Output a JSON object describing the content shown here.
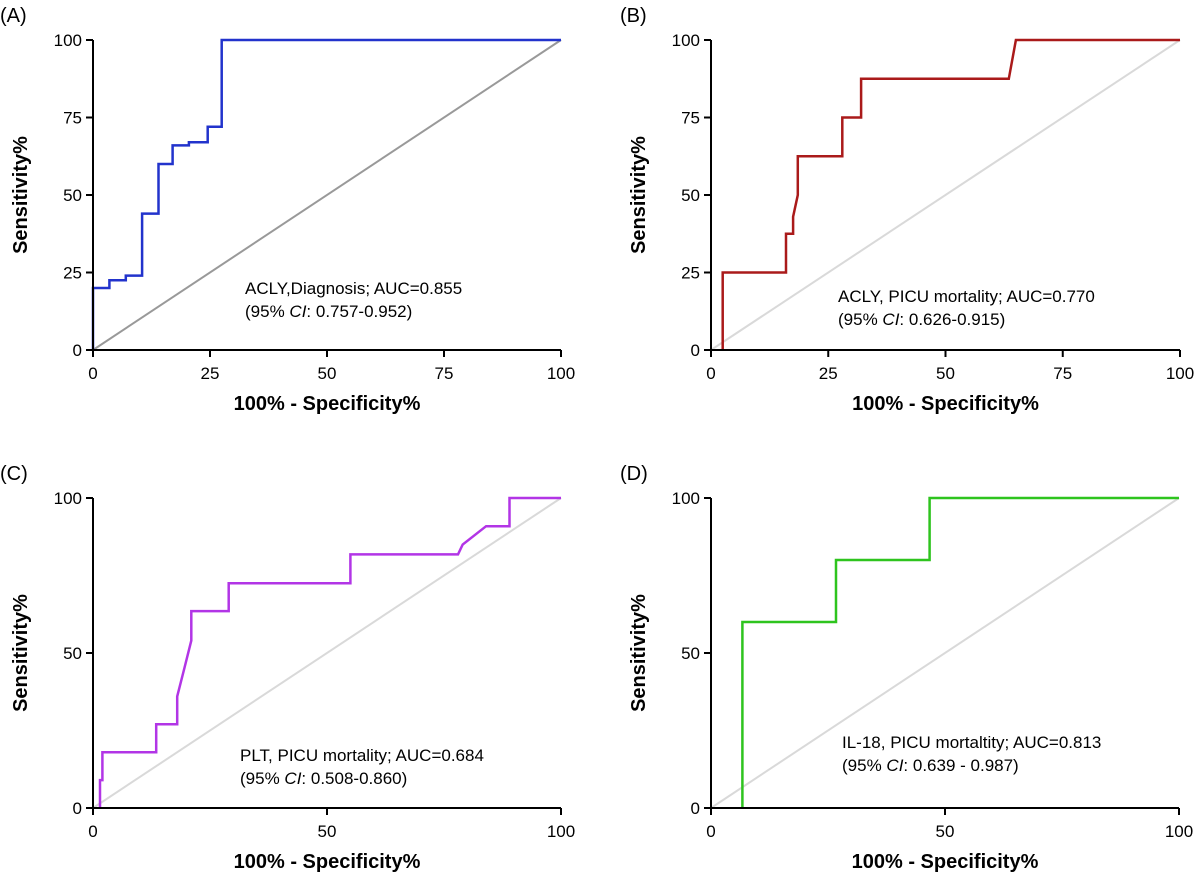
{
  "chart_data": [
    {
      "panel": "(A)",
      "type": "line",
      "xlabel": "100% - Specificity%",
      "ylabel": "Sensitivity%",
      "xlim": [
        0,
        100
      ],
      "ylim": [
        0,
        100
      ],
      "xticks": [
        "0",
        "25",
        "50",
        "75",
        "100"
      ],
      "yticks": [
        "0",
        "25",
        "50",
        "75",
        "100"
      ],
      "grid": false,
      "annotation_lines": [
        "ACLY,Diagnosis; AUC=0.855",
        "(95% ",
        "CI",
        ": 0.757-0.952)"
      ],
      "series": [
        {
          "color": "#2233cc",
          "x": [
            0,
            0,
            3.5,
            3.5,
            7,
            7,
            10.5,
            10.5,
            14,
            14,
            17,
            17,
            20.5,
            20.5,
            24.5,
            24.5,
            27.5,
            27.5,
            100
          ],
          "y": [
            0,
            20,
            20,
            22.5,
            22.5,
            24,
            24,
            44,
            44,
            60,
            60,
            66,
            66,
            67,
            67,
            72,
            72,
            100,
            100
          ]
        },
        {
          "color": "#999999",
          "x": [
            0,
            100
          ],
          "y": [
            0,
            100
          ]
        }
      ]
    },
    {
      "panel": "(B)",
      "type": "line",
      "xlabel": "100% - Specificity%",
      "ylabel": "Sensitivity%",
      "xlim": [
        0,
        100
      ],
      "ylim": [
        0,
        100
      ],
      "xticks": [
        "0",
        "25",
        "50",
        "75",
        "100"
      ],
      "yticks": [
        "0",
        "25",
        "50",
        "75",
        "100"
      ],
      "grid": false,
      "annotation_lines": [
        "ACLY, PICU mortality; AUC=0.770",
        " (95% ",
        "CI",
        ": 0.626-0.915)"
      ],
      "series": [
        {
          "color": "#aa1a1a",
          "x": [
            2.5,
            2.5,
            16,
            16,
            17.5,
            17.5,
            18.5,
            18.5,
            28,
            28,
            32,
            32,
            63.5,
            65,
            100
          ],
          "y": [
            0,
            25,
            25,
            37.5,
            37.5,
            43,
            50,
            62.5,
            62.5,
            75,
            75,
            87.5,
            87.5,
            100,
            100
          ]
        },
        {
          "color": "#d9d9d9",
          "x": [
            0,
            100
          ],
          "y": [
            0,
            100
          ]
        }
      ]
    },
    {
      "panel": "(C)",
      "type": "line",
      "xlabel": "100% - Specificity%",
      "ylabel": "Sensitivity%",
      "xlim": [
        0,
        100
      ],
      "ylim": [
        0,
        100
      ],
      "xticks": [
        "0",
        "50",
        "100"
      ],
      "yticks": [
        "0",
        "50",
        "100"
      ],
      "grid": false,
      "annotation_lines": [
        "PLT, PICU mortality; AUC=0.684",
        "(95% ",
        "CI",
        ": 0.508-0.860)"
      ],
      "series": [
        {
          "color": "#b235e6",
          "x": [
            1.5,
            1.5,
            2,
            2,
            13.5,
            13.5,
            18,
            18,
            19.5,
            19.5,
            21,
            21,
            29,
            29,
            55,
            55,
            78,
            79,
            84,
            84.5,
            89,
            89,
            100
          ],
          "y": [
            0,
            9,
            9,
            18,
            18,
            27,
            27,
            36,
            45,
            45,
            54,
            63.5,
            63.5,
            72.5,
            72.5,
            81.8,
            81.8,
            85,
            90.9,
            90.9,
            90.9,
            100,
            100
          ]
        },
        {
          "color": "#d9d9d9",
          "x": [
            0,
            100
          ],
          "y": [
            0,
            100
          ]
        }
      ]
    },
    {
      "panel": "(D)",
      "type": "line",
      "xlabel": "100% - Specificity%",
      "ylabel": "Sensitivity%",
      "xlim": [
        0,
        100
      ],
      "ylim": [
        0,
        100
      ],
      "xticks": [
        "0",
        "50",
        "100"
      ],
      "yticks": [
        "0",
        "50",
        "100"
      ],
      "grid": false,
      "annotation_lines": [
        "IL-18, PICU mortaltity; AUC=0.813",
        "(95% ",
        "CI",
        ": 0.639 - 0.987)"
      ],
      "series": [
        {
          "color": "#2ec41e",
          "x": [
            6.7,
            6.7,
            26.7,
            26.7,
            46.7,
            46.7,
            100
          ],
          "y": [
            0,
            60,
            60,
            80,
            80,
            100,
            100
          ]
        },
        {
          "color": "#d9d9d9",
          "x": [
            0,
            100
          ],
          "y": [
            0,
            100
          ]
        }
      ]
    }
  ]
}
